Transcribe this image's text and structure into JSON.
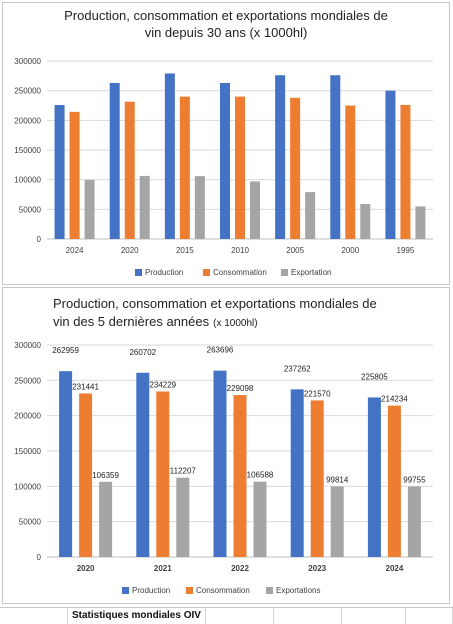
{
  "colors": {
    "production": "#4472C4",
    "consommation": "#ED7D31",
    "exportation": "#A5A5A5",
    "grid": "#D9D9D9",
    "text": "#404040"
  },
  "footer": {
    "label": "Statistiques mondiales OIV"
  },
  "charts": [
    {
      "chart_data": {
        "type": "bar",
        "title_line1": "Production, consommation et exportations  mondiales de",
        "title_line2": "vin depuis 30 ans (x 1000hl)",
        "categories": [
          "2024",
          "2020",
          "2015",
          "2010",
          "2005",
          "2000",
          "1995"
        ],
        "series": [
          {
            "name": "Production",
            "values": [
              225805,
              262959,
              279000,
              263000,
              276000,
              276000,
              250000
            ]
          },
          {
            "name": "Consommation",
            "values": [
              214234,
              231441,
              240000,
              240000,
              238000,
              225000,
              226000
            ]
          },
          {
            "name": "Exportation",
            "values": [
              99755,
              106359,
              106000,
              97000,
              79000,
              59000,
              55000
            ]
          }
        ],
        "ylim": [
          0,
          300000
        ],
        "yticks": [
          "0",
          "50000",
          "100000",
          "150000",
          "200000",
          "250000",
          "300000"
        ],
        "grid": true,
        "legend": "bottom",
        "show_values": false
      }
    },
    {
      "chart_data": {
        "type": "bar",
        "title_line1": "Production, consommation et exportations mondiales de",
        "title_line2": "vin des 5 dernières années",
        "title_suffix": "(x 1000hl)",
        "categories": [
          "2020",
          "2021",
          "2022",
          "2023",
          "2024"
        ],
        "series": [
          {
            "name": "Production",
            "values": [
              262959,
              260702,
              263696,
              237262,
              225805
            ]
          },
          {
            "name": "Consommation",
            "values": [
              231441,
              234229,
              229098,
              221570,
              214234
            ]
          },
          {
            "name": "Exportations",
            "values": [
              106359,
              112207,
              106588,
              99814,
              99755
            ]
          }
        ],
        "ylim": [
          0,
          300000
        ],
        "yticks": [
          "0",
          "50000",
          "100000",
          "150000",
          "200000",
          "250000",
          "300000"
        ],
        "grid": true,
        "legend": "bottom",
        "show_values": true
      }
    }
  ]
}
